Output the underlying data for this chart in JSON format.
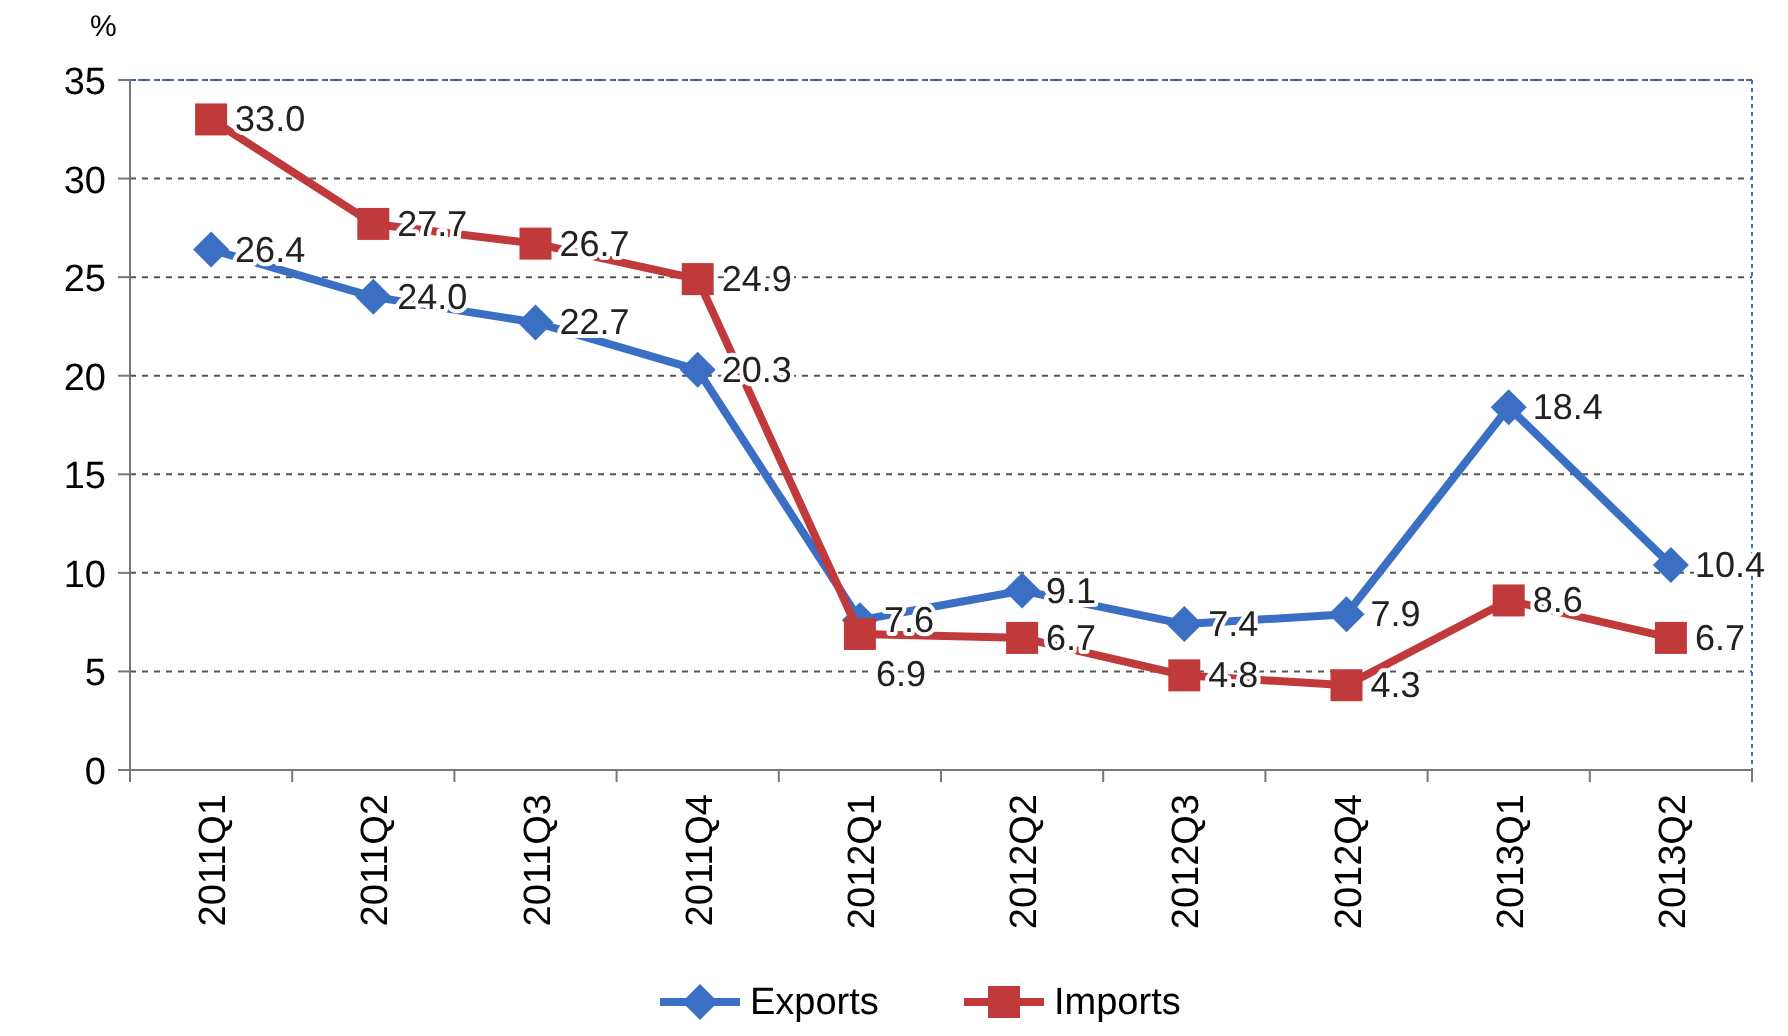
{
  "chart_data": {
    "type": "line",
    "ylabel": "%",
    "categories": [
      "2011Q1",
      "2011Q2",
      "2011Q3",
      "2011Q4",
      "2012Q1",
      "2012Q2",
      "2012Q3",
      "2012Q4",
      "2013Q1",
      "2013Q2"
    ],
    "series": [
      {
        "name": "Exports",
        "color": "#3a6fc4",
        "marker": "diamond",
        "values": [
          26.4,
          24.0,
          22.7,
          20.3,
          7.6,
          9.1,
          7.4,
          7.9,
          18.4,
          10.4
        ],
        "value_labels": [
          "26.4",
          "24.0",
          "22.7",
          "20.3",
          "7.6",
          "9.1",
          "7.4",
          "7.9",
          "18.4",
          "10.4"
        ]
      },
      {
        "name": "Imports",
        "color": "#c0393b",
        "marker": "square",
        "values": [
          33.0,
          27.7,
          26.7,
          24.9,
          6.9,
          6.7,
          4.8,
          4.3,
          8.6,
          6.7
        ],
        "value_labels": [
          "33.0",
          "27.7",
          "26.7",
          "24.9",
          "6.9",
          "6.7",
          "4.8",
          "4.3",
          "8.6",
          "6.7"
        ]
      }
    ],
    "ylim": [
      0,
      35
    ],
    "yticks": [
      0,
      5,
      10,
      15,
      20,
      25,
      30,
      35
    ],
    "grid": "y",
    "legend": "bottom"
  }
}
